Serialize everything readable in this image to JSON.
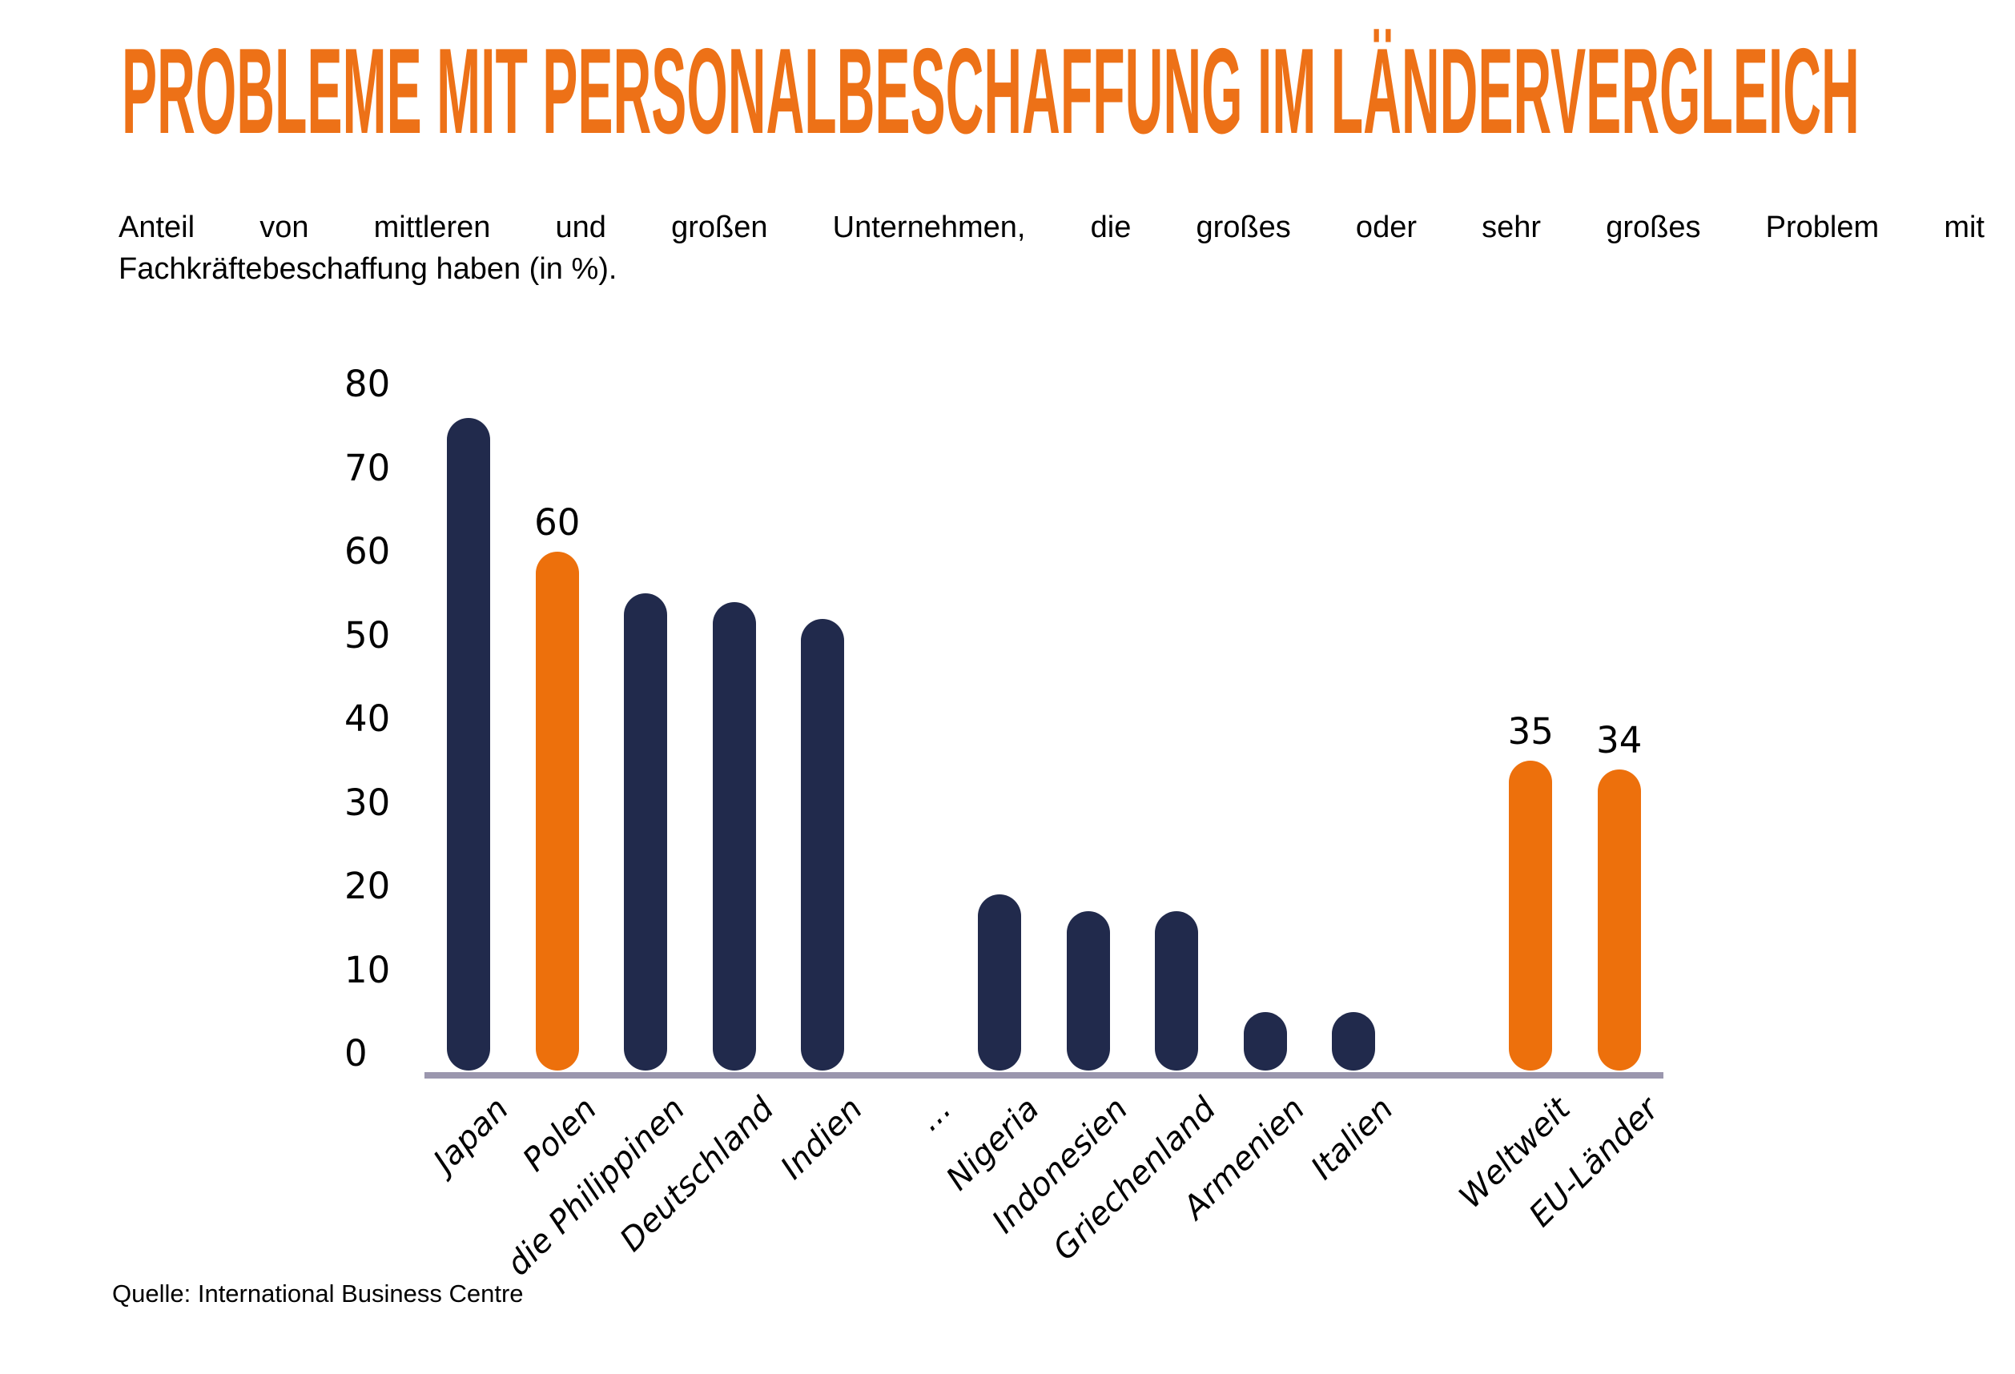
{
  "header": {
    "title": "PROBLEME MIT PERSONALBESCHAFFUNG IM LÄNDERVERGLEICH",
    "title_color": "#ED7117",
    "subtitle_line1": "Anteil von mittleren und großen Unternehmen, die großes oder sehr großes Problem mit",
    "subtitle_line2": "Fachkräftebeschaffung haben (in %)."
  },
  "footer": {
    "source": "Quelle: International Business Centre"
  },
  "chart_data": {
    "type": "bar",
    "title": "PROBLEME MIT PERSONALBESCHAFFUNG IM LÄNDERVERGLEICH",
    "subtitle": "Anteil von mittleren und großen Unternehmen, die großes oder sehr großes Problem mit Fachkräftebeschaffung haben (in %).",
    "categories": [
      "Japan",
      "Polen",
      "die Philippinen",
      "Deutschland",
      "Indien",
      "...",
      "Nigeria",
      "Indonesien",
      "Griechenland",
      "Armenien",
      "Italien",
      "",
      "Weltweit",
      "EU-Länder"
    ],
    "values": [
      76,
      60,
      55,
      54,
      52,
      null,
      19,
      17,
      17,
      5,
      5,
      null,
      35,
      34
    ],
    "bar_labels": [
      null,
      "60",
      null,
      null,
      null,
      null,
      null,
      null,
      null,
      null,
      null,
      null,
      "35",
      "34"
    ],
    "highlighted": [
      false,
      true,
      false,
      false,
      false,
      false,
      false,
      false,
      false,
      false,
      false,
      false,
      true,
      true
    ],
    "yticks": [
      0,
      10,
      20,
      30,
      40,
      50,
      60,
      70,
      80
    ],
    "ylim": [
      0,
      80
    ],
    "xlabel": "",
    "ylabel": "",
    "grid": false,
    "legend": null,
    "bar_color": "#212A4C",
    "highlight_color": "#ED700C",
    "axis_line_color": "#9B97AE",
    "source": "Quelle: International Business Centre"
  }
}
